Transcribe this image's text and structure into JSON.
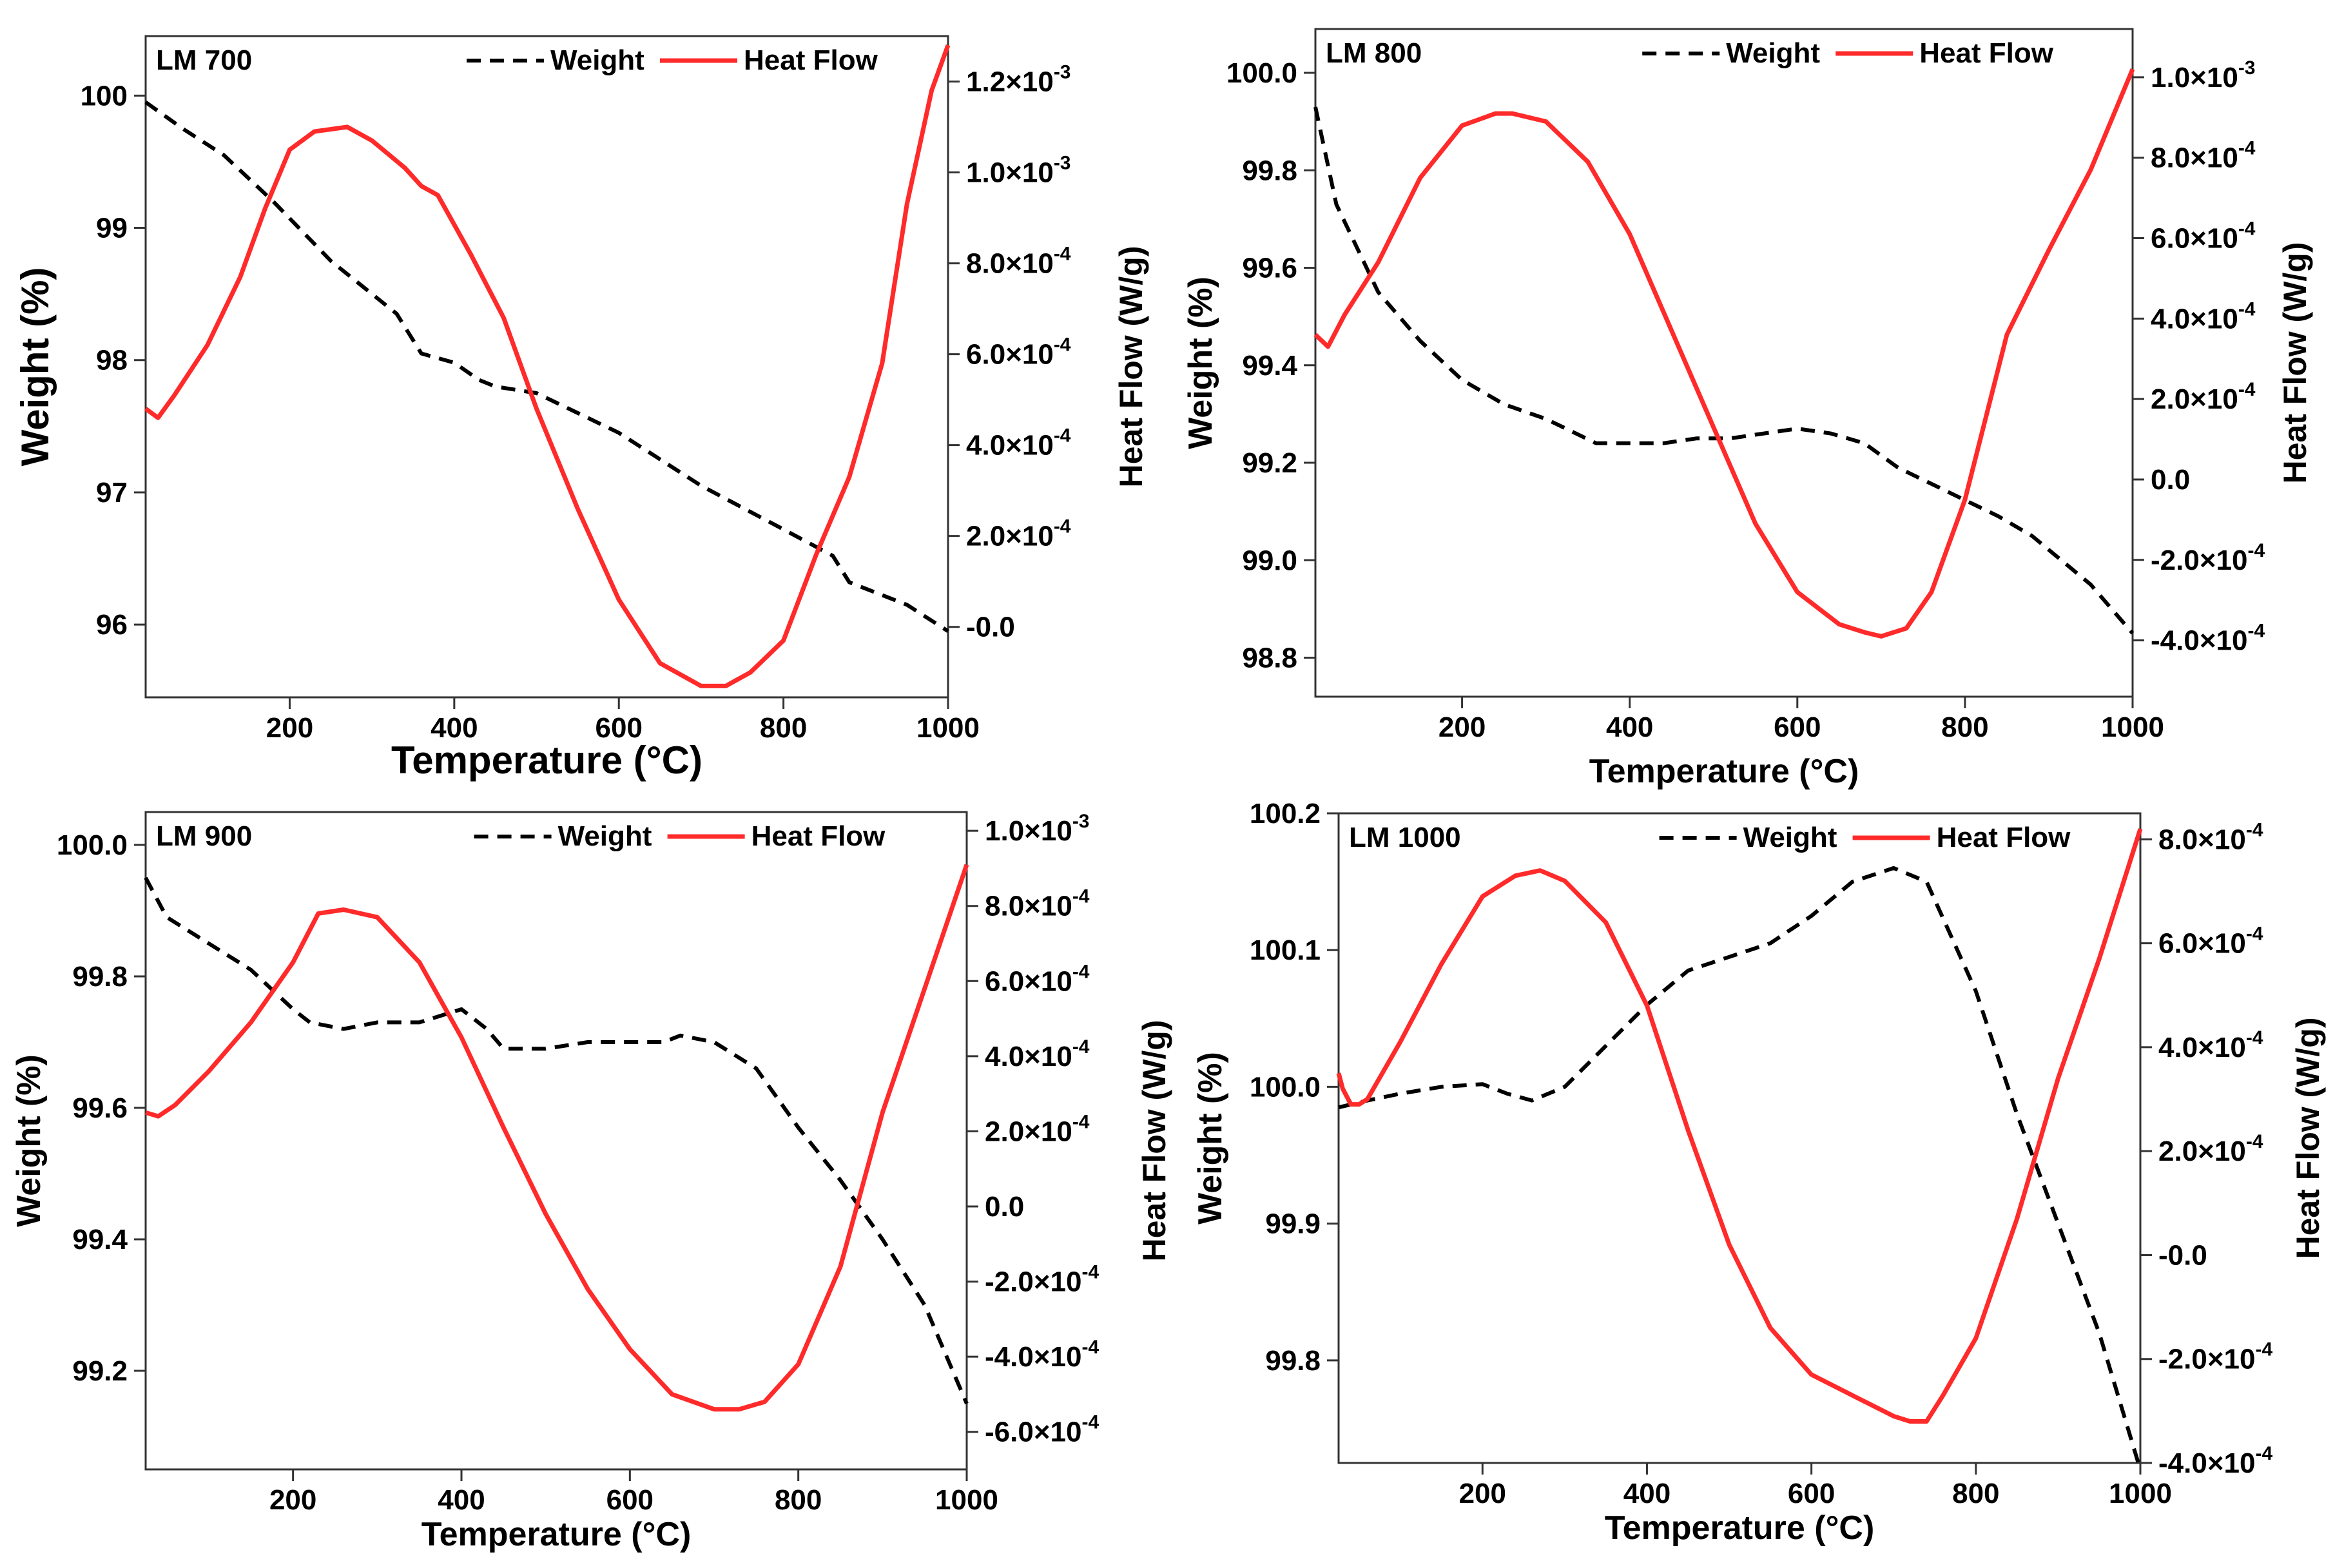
{
  "colors": {
    "weight": "#000000",
    "heat_flow": "#ff2a2a",
    "axes": "#333333"
  },
  "chart_data": [
    {
      "type": "line",
      "panel_label": "LM 700",
      "xlabel": "Temperature (°C)",
      "ylabel_left": "Weight (%)",
      "ylabel_right": "Heat Flow (W/g)",
      "xlim": [
        25,
        1000
      ],
      "ylim_left": [
        95.45,
        100.45
      ],
      "ylim_right": [
        -0.000155,
        0.0013
      ],
      "xticks": [
        {
          "v": 200,
          "t": "200"
        },
        {
          "v": 400,
          "t": "400"
        },
        {
          "v": 600,
          "t": "600"
        },
        {
          "v": 800,
          "t": "800"
        },
        {
          "v": 1000,
          "t": "1000"
        }
      ],
      "yticks_left": [
        {
          "v": 96,
          "t": "96"
        },
        {
          "v": 97,
          "t": "97"
        },
        {
          "v": 98,
          "t": "98"
        },
        {
          "v": 99,
          "t": "99"
        },
        {
          "v": 100,
          "t": "100"
        }
      ],
      "yticks_right": [
        {
          "v": 0,
          "t": "-0.0"
        },
        {
          "v": 0.0002,
          "t": "2.0×10",
          "e": "-4"
        },
        {
          "v": 0.0004,
          "t": "4.0×10",
          "e": "-4"
        },
        {
          "v": 0.0006,
          "t": "6.0×10",
          "e": "-4"
        },
        {
          "v": 0.0008,
          "t": "8.0×10",
          "e": "-4"
        },
        {
          "v": 0.001,
          "t": "1.0×10",
          "e": "-3"
        },
        {
          "v": 0.0012,
          "t": "1.2×10",
          "e": "-3"
        }
      ],
      "series": [
        {
          "name": "Weight",
          "axis": "left",
          "style": "dashed",
          "x": [
            25,
            70,
            120,
            180,
            250,
            330,
            360,
            400,
            430,
            450,
            500,
            600,
            700,
            800,
            860,
            880,
            950,
            1000
          ],
          "y": [
            99.95,
            99.75,
            99.55,
            99.2,
            98.75,
            98.35,
            98.05,
            97.98,
            97.85,
            97.8,
            97.75,
            97.45,
            97.05,
            96.72,
            96.52,
            96.32,
            96.15,
            95.95
          ]
        },
        {
          "name": "Heat Flow",
          "axis": "right",
          "style": "solid",
          "x": [
            25,
            40,
            60,
            100,
            140,
            170,
            200,
            230,
            270,
            300,
            340,
            360,
            380,
            420,
            460,
            500,
            550,
            600,
            650,
            700,
            730,
            760,
            800,
            840,
            880,
            920,
            950,
            980,
            1000
          ],
          "y": [
            0.00048,
            0.00046,
            0.00051,
            0.00062,
            0.00077,
            0.00092,
            0.00105,
            0.00109,
            0.0011,
            0.00107,
            0.00101,
            0.00097,
            0.00095,
            0.00082,
            0.00068,
            0.00048,
            0.00026,
            6e-05,
            -8e-05,
            -0.00013,
            -0.00013,
            -0.0001,
            -3e-05,
            0.00016,
            0.00033,
            0.00058,
            0.00093,
            0.00118,
            0.00128
          ]
        }
      ]
    },
    {
      "type": "line",
      "panel_label": "LM 800",
      "xlabel": "Temperature (°C)",
      "ylabel_left": "Weight (%)",
      "ylabel_right": "Heat Flow (W/g)",
      "xlim": [
        25,
        1000
      ],
      "ylim_left": [
        98.72,
        100.09
      ],
      "ylim_right": [
        -0.00054,
        0.00112
      ],
      "xticks": [
        {
          "v": 200,
          "t": "200"
        },
        {
          "v": 400,
          "t": "400"
        },
        {
          "v": 600,
          "t": "600"
        },
        {
          "v": 800,
          "t": "800"
        },
        {
          "v": 1000,
          "t": "1000"
        }
      ],
      "yticks_left": [
        {
          "v": 98.8,
          "t": "98.8"
        },
        {
          "v": 99.0,
          "t": "99.0"
        },
        {
          "v": 99.2,
          "t": "99.2"
        },
        {
          "v": 99.4,
          "t": "99.4"
        },
        {
          "v": 99.6,
          "t": "99.6"
        },
        {
          "v": 99.8,
          "t": "99.8"
        },
        {
          "v": 100.0,
          "t": "100.0"
        }
      ],
      "yticks_right": [
        {
          "v": -0.0004,
          "t": "-4.0×10",
          "e": "-4"
        },
        {
          "v": -0.0002,
          "t": "-2.0×10",
          "e": "-4"
        },
        {
          "v": 0,
          "t": "0.0"
        },
        {
          "v": 0.0002,
          "t": "2.0×10",
          "e": "-4"
        },
        {
          "v": 0.0004,
          "t": "4.0×10",
          "e": "-4"
        },
        {
          "v": 0.0006,
          "t": "6.0×10",
          "e": "-4"
        },
        {
          "v": 0.0008,
          "t": "8.0×10",
          "e": "-4"
        },
        {
          "v": 0.001,
          "t": "1.0×10",
          "e": "-3"
        }
      ],
      "series": [
        {
          "name": "Weight",
          "axis": "left",
          "style": "dashed",
          "x": [
            25,
            50,
            100,
            150,
            200,
            250,
            300,
            360,
            400,
            440,
            480,
            520,
            560,
            600,
            640,
            680,
            720,
            780,
            840,
            880,
            950,
            1000
          ],
          "y": [
            99.93,
            99.73,
            99.55,
            99.45,
            99.37,
            99.32,
            99.29,
            99.24,
            99.24,
            99.24,
            99.25,
            99.25,
            99.26,
            99.27,
            99.26,
            99.24,
            99.19,
            99.14,
            99.09,
            99.05,
            98.95,
            98.85
          ]
        },
        {
          "name": "Heat Flow",
          "axis": "right",
          "style": "solid",
          "x": [
            25,
            40,
            60,
            100,
            150,
            200,
            240,
            260,
            300,
            350,
            400,
            450,
            500,
            550,
            600,
            650,
            680,
            700,
            730,
            760,
            800,
            850,
            900,
            950,
            1000
          ],
          "y": [
            0.00036,
            0.00033,
            0.00041,
            0.00054,
            0.00075,
            0.00088,
            0.00091,
            0.00091,
            0.00089,
            0.00079,
            0.00061,
            0.00037,
            0.00013,
            -0.00011,
            -0.00028,
            -0.00036,
            -0.00038,
            -0.00039,
            -0.00037,
            -0.00028,
            -5e-05,
            0.00036,
            0.00057,
            0.00077,
            0.00102
          ]
        }
      ]
    },
    {
      "type": "line",
      "panel_label": "LM 900",
      "xlabel": "Temperature (°C)",
      "ylabel_left": "Weight (%)",
      "ylabel_right": "Heat Flow (W/g)",
      "xlim": [
        25,
        1000
      ],
      "ylim_left": [
        99.05,
        100.05
      ],
      "ylim_right": [
        -0.0007,
        0.00105
      ],
      "xticks": [
        {
          "v": 200,
          "t": "200"
        },
        {
          "v": 400,
          "t": "400"
        },
        {
          "v": 600,
          "t": "600"
        },
        {
          "v": 800,
          "t": "800"
        },
        {
          "v": 1000,
          "t": "1000"
        }
      ],
      "yticks_left": [
        {
          "v": 99.2,
          "t": "99.2"
        },
        {
          "v": 99.4,
          "t": "99.4"
        },
        {
          "v": 99.6,
          "t": "99.6"
        },
        {
          "v": 99.8,
          "t": "99.8"
        },
        {
          "v": 100.0,
          "t": "100.0"
        }
      ],
      "yticks_right": [
        {
          "v": -0.0006,
          "t": "-6.0×10",
          "e": "-4"
        },
        {
          "v": -0.0004,
          "t": "-4.0×10",
          "e": "-4"
        },
        {
          "v": -0.0002,
          "t": "-2.0×10",
          "e": "-4"
        },
        {
          "v": 0,
          "t": "0.0"
        },
        {
          "v": 0.0002,
          "t": "2.0×10",
          "e": "-4"
        },
        {
          "v": 0.0004,
          "t": "4.0×10",
          "e": "-4"
        },
        {
          "v": 0.0006,
          "t": "6.0×10",
          "e": "-4"
        },
        {
          "v": 0.0008,
          "t": "8.0×10",
          "e": "-4"
        },
        {
          "v": 0.001,
          "t": "1.0×10",
          "e": "-3"
        }
      ],
      "series": [
        {
          "name": "Weight",
          "axis": "left",
          "style": "dashed",
          "x": [
            25,
            50,
            100,
            150,
            200,
            220,
            260,
            300,
            350,
            400,
            430,
            450,
            500,
            550,
            600,
            640,
            660,
            700,
            750,
            800,
            850,
            900,
            950,
            1000
          ],
          "y": [
            99.95,
            99.89,
            99.85,
            99.81,
            99.75,
            99.73,
            99.72,
            99.73,
            99.73,
            99.75,
            99.72,
            99.69,
            99.69,
            99.7,
            99.7,
            99.7,
            99.71,
            99.7,
            99.66,
            99.57,
            99.49,
            99.4,
            99.3,
            99.15
          ]
        },
        {
          "name": "Heat Flow",
          "axis": "right",
          "style": "solid",
          "x": [
            25,
            40,
            60,
            100,
            150,
            200,
            230,
            260,
            300,
            350,
            400,
            450,
            500,
            550,
            600,
            650,
            700,
            730,
            760,
            800,
            850,
            900,
            950,
            1000
          ],
          "y": [
            0.00025,
            0.00024,
            0.00027,
            0.00036,
            0.00049,
            0.00065,
            0.00078,
            0.00079,
            0.00077,
            0.00065,
            0.00045,
            0.00021,
            -2e-05,
            -0.00022,
            -0.00038,
            -0.0005,
            -0.00054,
            -0.00054,
            -0.00052,
            -0.00042,
            -0.00016,
            0.00025,
            0.00058,
            0.00091
          ]
        }
      ]
    },
    {
      "type": "line",
      "panel_label": "LM 1000",
      "xlabel": "Temperature (°C)",
      "ylabel_left": "Weight (%)",
      "ylabel_right": "Heat Flow (W/g)",
      "xlim": [
        25,
        1000
      ],
      "ylim_left": [
        99.725,
        100.2
      ],
      "ylim_right": [
        -0.0004,
        0.00085
      ],
      "xticks": [
        {
          "v": 200,
          "t": "200"
        },
        {
          "v": 400,
          "t": "400"
        },
        {
          "v": 600,
          "t": "600"
        },
        {
          "v": 800,
          "t": "800"
        },
        {
          "v": 1000,
          "t": "1000"
        }
      ],
      "yticks_left": [
        {
          "v": 99.8,
          "t": "99.8"
        },
        {
          "v": 99.9,
          "t": "99.9"
        },
        {
          "v": 100.0,
          "t": "100.0"
        },
        {
          "v": 100.1,
          "t": "100.1"
        },
        {
          "v": 100.2,
          "t": "100.2"
        }
      ],
      "yticks_right": [
        {
          "v": -0.0004,
          "t": "-4.0×10",
          "e": "-4"
        },
        {
          "v": -0.0002,
          "t": "-2.0×10",
          "e": "-4"
        },
        {
          "v": 0,
          "t": "-0.0"
        },
        {
          "v": 0.0002,
          "t": "2.0×10",
          "e": "-4"
        },
        {
          "v": 0.0004,
          "t": "4.0×10",
          "e": "-4"
        },
        {
          "v": 0.0006,
          "t": "6.0×10",
          "e": "-4"
        },
        {
          "v": 0.0008,
          "t": "8.0×10",
          "e": "-4"
        }
      ],
      "series": [
        {
          "name": "Weight",
          "axis": "left",
          "style": "dashed",
          "x": [
            25,
            60,
            100,
            150,
            200,
            230,
            260,
            300,
            350,
            400,
            450,
            500,
            550,
            600,
            650,
            700,
            740,
            800,
            850,
            900,
            950,
            1000
          ],
          "y": [
            99.985,
            99.99,
            99.995,
            100.0,
            100.002,
            99.995,
            99.99,
            100.0,
            100.03,
            100.06,
            100.085,
            100.095,
            100.105,
            100.125,
            100.15,
            100.16,
            100.15,
            100.07,
            99.98,
            99.9,
            99.82,
            99.72
          ]
        },
        {
          "name": "Heat Flow",
          "axis": "right",
          "style": "solid",
          "x": [
            25,
            30,
            40,
            50,
            60,
            100,
            150,
            200,
            240,
            270,
            300,
            350,
            400,
            450,
            500,
            550,
            600,
            650,
            700,
            720,
            740,
            760,
            800,
            850,
            900,
            950,
            1000
          ],
          "y": [
            0.00035,
            0.00032,
            0.00029,
            0.00029,
            0.0003,
            0.00041,
            0.00056,
            0.00069,
            0.00073,
            0.00074,
            0.00072,
            0.00064,
            0.00048,
            0.00024,
            2e-05,
            -0.00014,
            -0.00023,
            -0.00027,
            -0.00031,
            -0.00032,
            -0.00032,
            -0.00027,
            -0.00016,
            7e-05,
            0.00034,
            0.00057,
            0.00082
          ]
        }
      ]
    }
  ]
}
